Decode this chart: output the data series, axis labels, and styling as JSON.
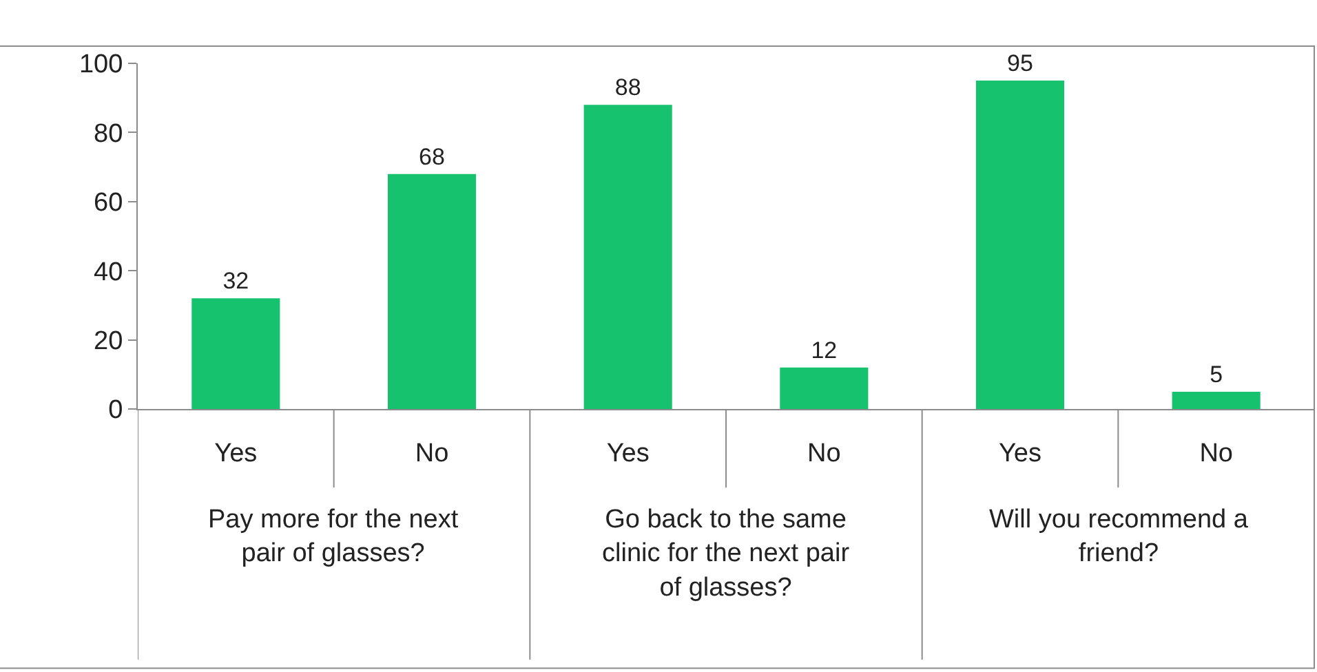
{
  "chart_data": {
    "type": "bar",
    "categories": [
      "Yes",
      "No",
      "Yes",
      "No",
      "Yes",
      "No"
    ],
    "values": [
      32,
      68,
      88,
      12,
      95,
      5
    ],
    "color": "#16c26e",
    "ylim": [
      0,
      100
    ],
    "yticks": [
      0,
      20,
      40,
      60,
      80,
      100
    ],
    "data_labels": true,
    "annotations": [
      "Pay more for the next pair of glasses?",
      "Go back to the same clinic for the next pair of glasses?",
      "Will you recommend a friend?"
    ]
  }
}
